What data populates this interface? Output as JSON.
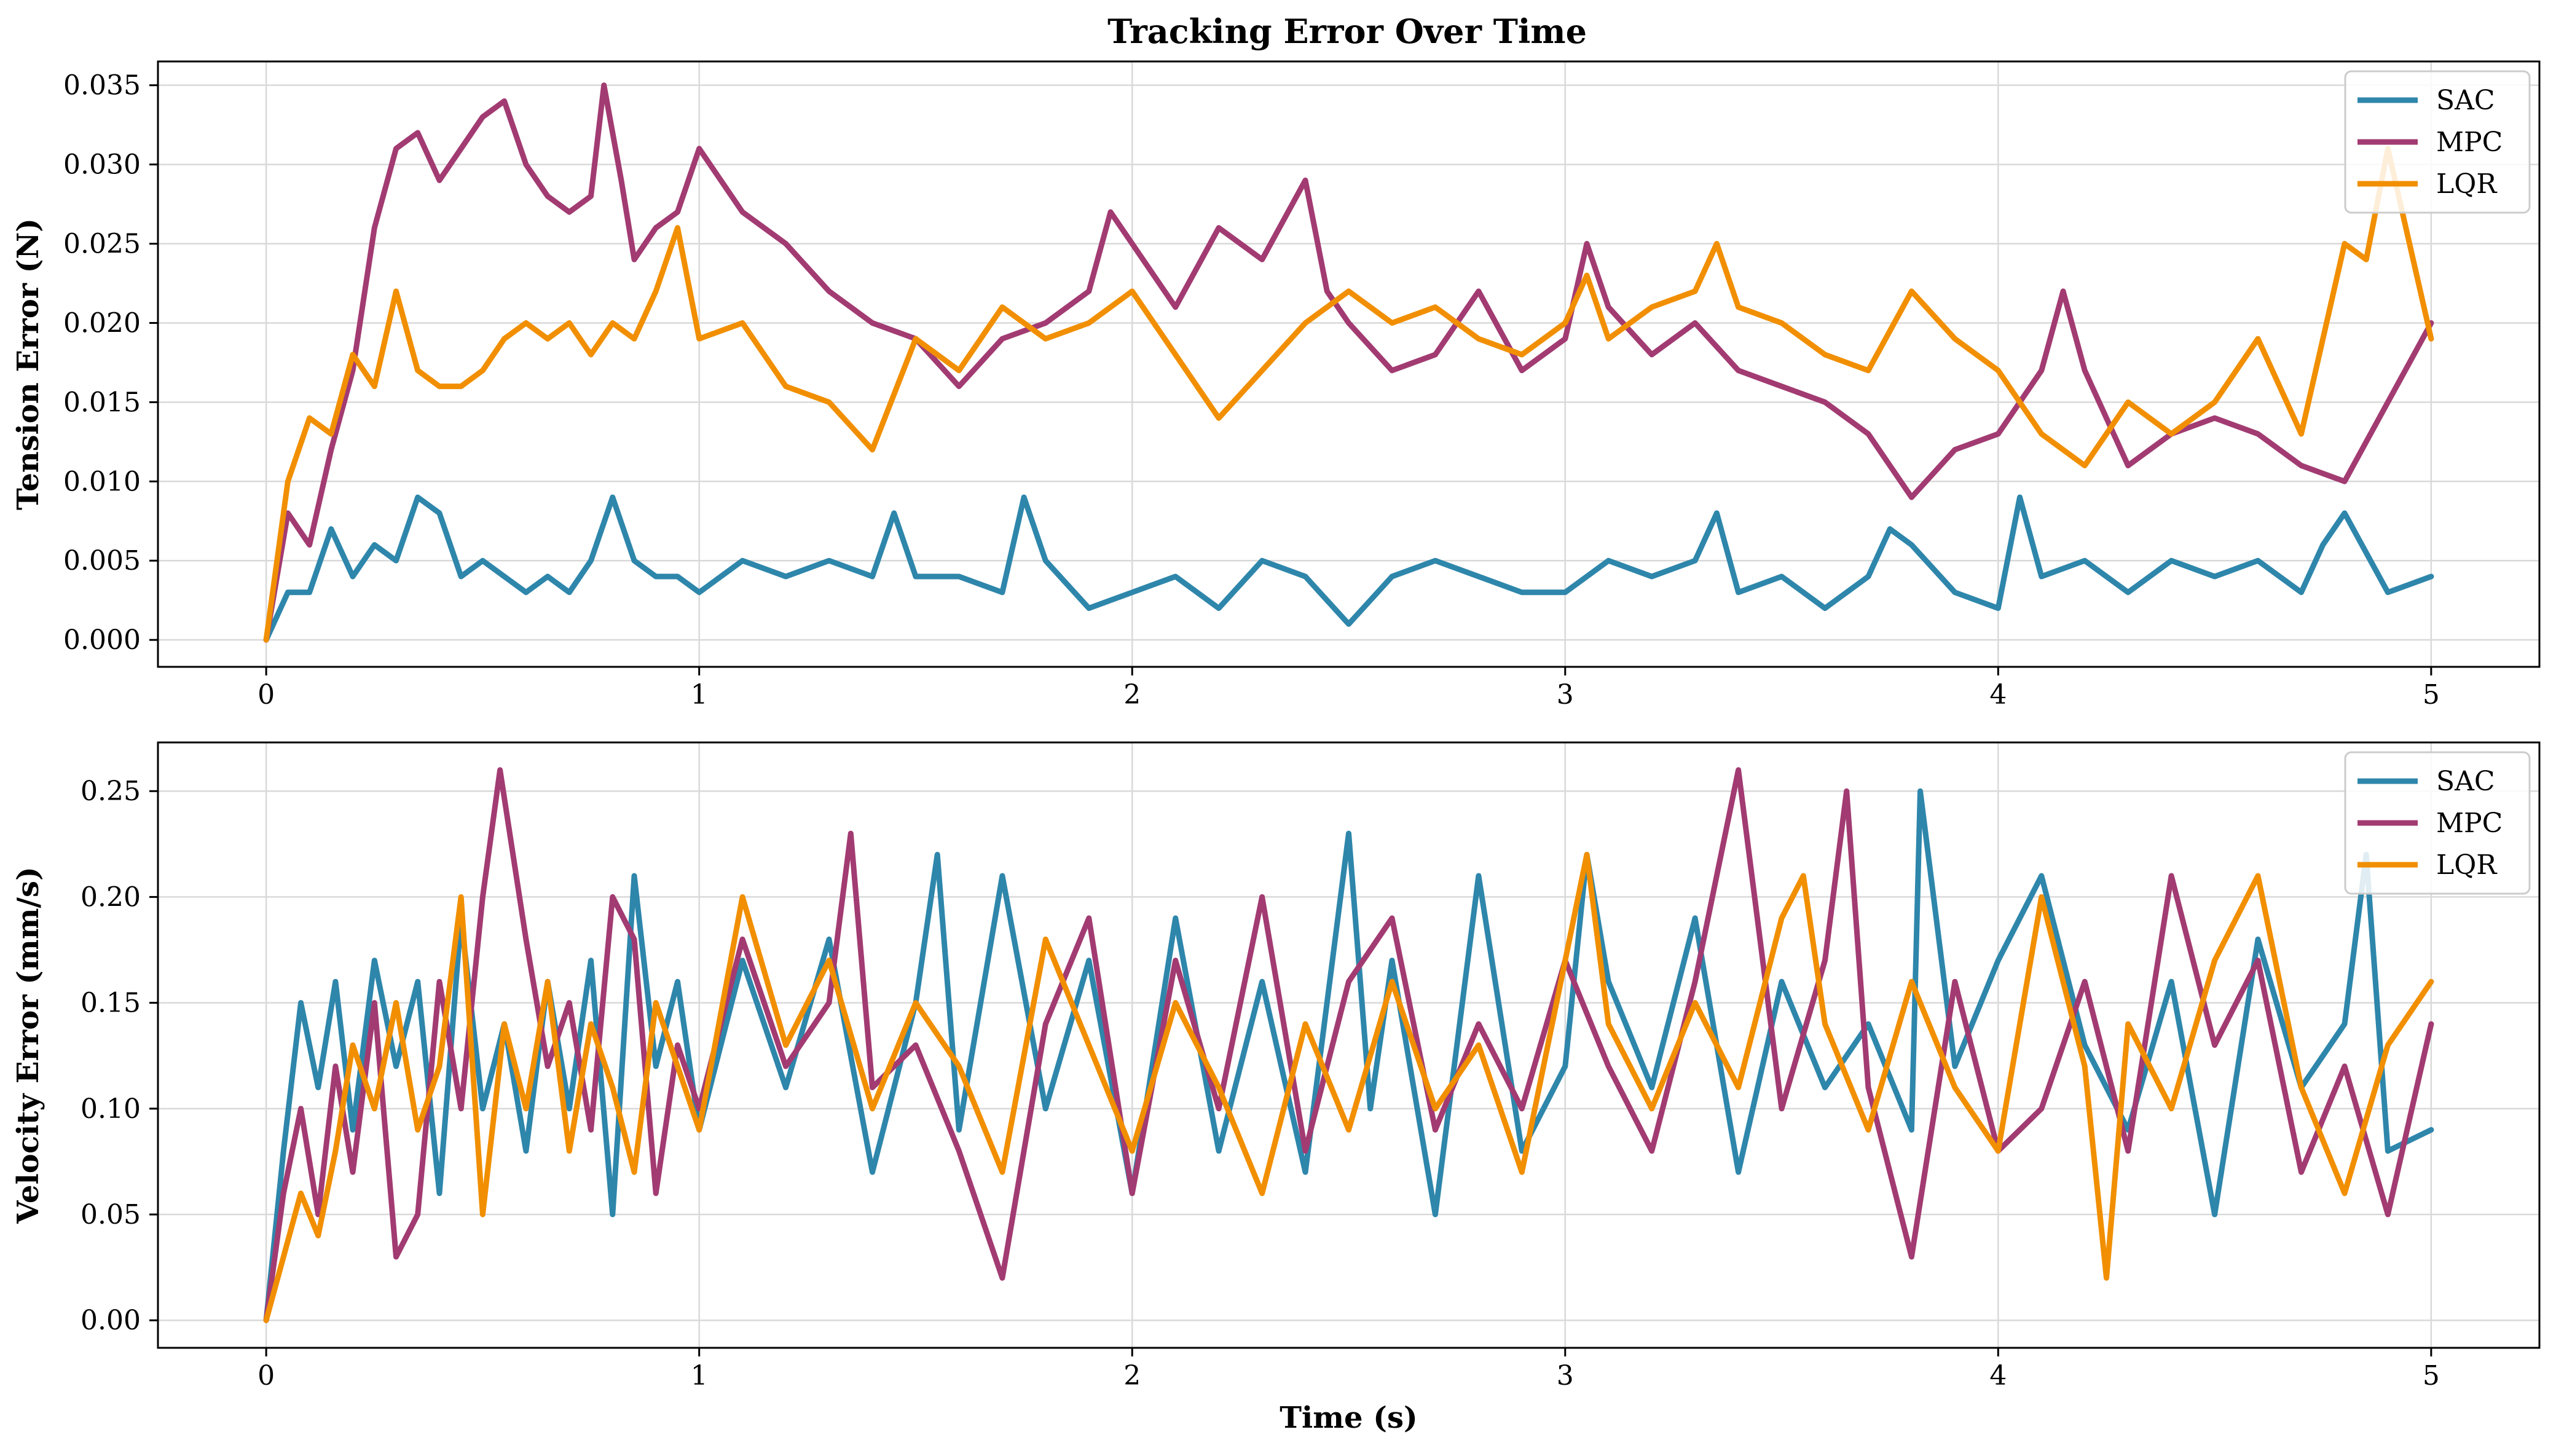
{
  "title": "Tracking Error Over Time",
  "colors": {
    "SAC": "#2e86ab",
    "MPC": "#a23b72",
    "LQR": "#f18f01"
  },
  "chart_data": [
    {
      "type": "line",
      "title": "Tracking Error Over Time",
      "xlabel": "",
      "ylabel": "Tension Error (N)",
      "xlim": [
        -0.25,
        5.25
      ],
      "ylim": [
        -0.0017,
        0.0365
      ],
      "xticks": [
        0,
        1,
        2,
        3,
        4,
        5
      ],
      "xtick_labels": [
        "0",
        "1",
        "2",
        "3",
        "4",
        "5"
      ],
      "yticks": [
        0.0,
        0.005,
        0.01,
        0.015,
        0.02,
        0.025,
        0.03,
        0.035
      ],
      "ytick_labels": [
        "0.000",
        "0.005",
        "0.010",
        "0.015",
        "0.020",
        "0.025",
        "0.030",
        "0.035"
      ],
      "grid": true,
      "legend": "top-right",
      "legend_entries": [
        "SAC",
        "MPC",
        "LQR"
      ],
      "series": [
        {
          "name": "SAC",
          "x": [
            0,
            0.05,
            0.1,
            0.15,
            0.2,
            0.25,
            0.3,
            0.35,
            0.4,
            0.45,
            0.5,
            0.55,
            0.6,
            0.65,
            0.7,
            0.75,
            0.8,
            0.85,
            0.9,
            0.95,
            1.0,
            1.1,
            1.2,
            1.3,
            1.4,
            1.45,
            1.5,
            1.6,
            1.7,
            1.75,
            1.8,
            1.9,
            2.0,
            2.1,
            2.2,
            2.3,
            2.4,
            2.5,
            2.6,
            2.7,
            2.8,
            2.9,
            3.0,
            3.1,
            3.2,
            3.3,
            3.35,
            3.4,
            3.5,
            3.6,
            3.7,
            3.75,
            3.8,
            3.9,
            4.0,
            4.05,
            4.1,
            4.2,
            4.3,
            4.4,
            4.5,
            4.6,
            4.7,
            4.75,
            4.8,
            4.9,
            5.0
          ],
          "values": [
            0.0,
            0.003,
            0.003,
            0.007,
            0.004,
            0.006,
            0.005,
            0.009,
            0.008,
            0.004,
            0.005,
            0.004,
            0.003,
            0.004,
            0.003,
            0.005,
            0.009,
            0.005,
            0.004,
            0.004,
            0.003,
            0.005,
            0.004,
            0.005,
            0.004,
            0.008,
            0.004,
            0.004,
            0.003,
            0.009,
            0.005,
            0.002,
            0.003,
            0.004,
            0.002,
            0.005,
            0.004,
            0.001,
            0.004,
            0.005,
            0.004,
            0.003,
            0.003,
            0.005,
            0.004,
            0.005,
            0.008,
            0.003,
            0.004,
            0.002,
            0.004,
            0.007,
            0.006,
            0.003,
            0.002,
            0.009,
            0.004,
            0.005,
            0.003,
            0.005,
            0.004,
            0.005,
            0.003,
            0.006,
            0.008,
            0.003,
            0.004
          ]
        },
        {
          "name": "MPC",
          "x": [
            0,
            0.05,
            0.1,
            0.15,
            0.2,
            0.25,
            0.3,
            0.35,
            0.4,
            0.45,
            0.5,
            0.55,
            0.6,
            0.65,
            0.7,
            0.75,
            0.78,
            0.82,
            0.85,
            0.9,
            0.95,
            1.0,
            1.1,
            1.2,
            1.3,
            1.4,
            1.5,
            1.6,
            1.7,
            1.8,
            1.9,
            1.95,
            2.0,
            2.1,
            2.2,
            2.3,
            2.4,
            2.45,
            2.5,
            2.6,
            2.7,
            2.8,
            2.9,
            3.0,
            3.05,
            3.1,
            3.2,
            3.3,
            3.4,
            3.5,
            3.6,
            3.7,
            3.8,
            3.9,
            4.0,
            4.1,
            4.15,
            4.2,
            4.3,
            4.4,
            4.5,
            4.6,
            4.7,
            4.8,
            4.9,
            5.0
          ],
          "values": [
            0.0,
            0.008,
            0.006,
            0.012,
            0.017,
            0.026,
            0.031,
            0.032,
            0.029,
            0.031,
            0.033,
            0.034,
            0.03,
            0.028,
            0.027,
            0.028,
            0.035,
            0.029,
            0.024,
            0.026,
            0.027,
            0.031,
            0.027,
            0.025,
            0.022,
            0.02,
            0.019,
            0.016,
            0.019,
            0.02,
            0.022,
            0.027,
            0.025,
            0.021,
            0.026,
            0.024,
            0.029,
            0.022,
            0.02,
            0.017,
            0.018,
            0.022,
            0.017,
            0.019,
            0.025,
            0.021,
            0.018,
            0.02,
            0.017,
            0.016,
            0.015,
            0.013,
            0.009,
            0.012,
            0.013,
            0.017,
            0.022,
            0.017,
            0.011,
            0.013,
            0.014,
            0.013,
            0.011,
            0.01,
            0.015,
            0.02
          ]
        },
        {
          "name": "LQR",
          "x": [
            0,
            0.05,
            0.1,
            0.15,
            0.2,
            0.25,
            0.3,
            0.35,
            0.4,
            0.45,
            0.5,
            0.55,
            0.6,
            0.65,
            0.7,
            0.75,
            0.8,
            0.85,
            0.9,
            0.95,
            1.0,
            1.1,
            1.2,
            1.3,
            1.4,
            1.5,
            1.6,
            1.7,
            1.8,
            1.9,
            2.0,
            2.1,
            2.2,
            2.3,
            2.4,
            2.5,
            2.6,
            2.7,
            2.8,
            2.9,
            3.0,
            3.05,
            3.1,
            3.2,
            3.3,
            3.35,
            3.4,
            3.5,
            3.6,
            3.7,
            3.8,
            3.9,
            4.0,
            4.1,
            4.2,
            4.3,
            4.4,
            4.5,
            4.6,
            4.7,
            4.8,
            4.85,
            4.9,
            5.0
          ],
          "values": [
            0.0,
            0.01,
            0.014,
            0.013,
            0.018,
            0.016,
            0.022,
            0.017,
            0.016,
            0.016,
            0.017,
            0.019,
            0.02,
            0.019,
            0.02,
            0.018,
            0.02,
            0.019,
            0.022,
            0.026,
            0.019,
            0.02,
            0.016,
            0.015,
            0.012,
            0.019,
            0.017,
            0.021,
            0.019,
            0.02,
            0.022,
            0.018,
            0.014,
            0.017,
            0.02,
            0.022,
            0.02,
            0.021,
            0.019,
            0.018,
            0.02,
            0.023,
            0.019,
            0.021,
            0.022,
            0.025,
            0.021,
            0.02,
            0.018,
            0.017,
            0.022,
            0.019,
            0.017,
            0.013,
            0.011,
            0.015,
            0.013,
            0.015,
            0.019,
            0.013,
            0.025,
            0.024,
            0.031,
            0.019
          ]
        }
      ]
    },
    {
      "type": "line",
      "title": "",
      "xlabel": "Time (s)",
      "ylabel": "Velocity Error (mm/s)",
      "xlim": [
        -0.25,
        5.25
      ],
      "ylim": [
        -0.013,
        0.273
      ],
      "xticks": [
        0,
        1,
        2,
        3,
        4,
        5
      ],
      "xtick_labels": [
        "0",
        "1",
        "2",
        "3",
        "4",
        "5"
      ],
      "yticks": [
        0.0,
        0.05,
        0.1,
        0.15,
        0.2,
        0.25
      ],
      "ytick_labels": [
        "0.00",
        "0.05",
        "0.10",
        "0.15",
        "0.20",
        "0.25"
      ],
      "grid": true,
      "legend": "top-right",
      "legend_entries": [
        "SAC",
        "MPC",
        "LQR"
      ],
      "series": [
        {
          "name": "SAC",
          "x": [
            0,
            0.04,
            0.08,
            0.12,
            0.16,
            0.2,
            0.25,
            0.3,
            0.35,
            0.4,
            0.45,
            0.5,
            0.55,
            0.6,
            0.65,
            0.7,
            0.75,
            0.8,
            0.85,
            0.9,
            0.95,
            1.0,
            1.1,
            1.2,
            1.3,
            1.4,
            1.5,
            1.55,
            1.6,
            1.7,
            1.8,
            1.9,
            2.0,
            2.1,
            2.2,
            2.3,
            2.4,
            2.5,
            2.55,
            2.6,
            2.7,
            2.8,
            2.9,
            3.0,
            3.05,
            3.1,
            3.2,
            3.3,
            3.4,
            3.5,
            3.6,
            3.7,
            3.8,
            3.82,
            3.9,
            4.0,
            4.1,
            4.2,
            4.3,
            4.4,
            4.5,
            4.6,
            4.7,
            4.8,
            4.85,
            4.9,
            5.0
          ],
          "values": [
            0.0,
            0.08,
            0.15,
            0.11,
            0.16,
            0.09,
            0.17,
            0.12,
            0.16,
            0.06,
            0.19,
            0.1,
            0.14,
            0.08,
            0.16,
            0.1,
            0.17,
            0.05,
            0.21,
            0.12,
            0.16,
            0.09,
            0.17,
            0.11,
            0.18,
            0.07,
            0.15,
            0.22,
            0.09,
            0.21,
            0.1,
            0.17,
            0.06,
            0.19,
            0.08,
            0.16,
            0.07,
            0.23,
            0.1,
            0.17,
            0.05,
            0.21,
            0.08,
            0.12,
            0.22,
            0.16,
            0.11,
            0.19,
            0.07,
            0.16,
            0.11,
            0.14,
            0.09,
            0.25,
            0.12,
            0.17,
            0.21,
            0.13,
            0.09,
            0.16,
            0.05,
            0.18,
            0.11,
            0.14,
            0.22,
            0.08,
            0.09
          ]
        },
        {
          "name": "MPC",
          "x": [
            0,
            0.04,
            0.08,
            0.12,
            0.16,
            0.2,
            0.25,
            0.3,
            0.35,
            0.4,
            0.45,
            0.5,
            0.54,
            0.6,
            0.65,
            0.7,
            0.75,
            0.8,
            0.85,
            0.9,
            0.95,
            1.0,
            1.1,
            1.2,
            1.3,
            1.35,
            1.4,
            1.5,
            1.6,
            1.7,
            1.8,
            1.9,
            2.0,
            2.1,
            2.2,
            2.3,
            2.4,
            2.5,
            2.6,
            2.7,
            2.8,
            2.9,
            3.0,
            3.1,
            3.2,
            3.3,
            3.4,
            3.5,
            3.6,
            3.65,
            3.7,
            3.8,
            3.9,
            4.0,
            4.1,
            4.2,
            4.3,
            4.4,
            4.5,
            4.6,
            4.7,
            4.8,
            4.9,
            5.0
          ],
          "values": [
            0.0,
            0.06,
            0.1,
            0.05,
            0.12,
            0.07,
            0.15,
            0.03,
            0.05,
            0.16,
            0.1,
            0.2,
            0.26,
            0.18,
            0.12,
            0.15,
            0.09,
            0.2,
            0.18,
            0.06,
            0.13,
            0.1,
            0.18,
            0.12,
            0.15,
            0.23,
            0.11,
            0.13,
            0.08,
            0.02,
            0.14,
            0.19,
            0.06,
            0.17,
            0.1,
            0.2,
            0.08,
            0.16,
            0.19,
            0.09,
            0.14,
            0.1,
            0.17,
            0.12,
            0.08,
            0.16,
            0.26,
            0.1,
            0.17,
            0.25,
            0.11,
            0.03,
            0.16,
            0.08,
            0.1,
            0.16,
            0.08,
            0.21,
            0.13,
            0.17,
            0.07,
            0.12,
            0.05,
            0.14
          ]
        },
        {
          "name": "LQR",
          "x": [
            0,
            0.04,
            0.08,
            0.12,
            0.16,
            0.2,
            0.25,
            0.3,
            0.35,
            0.4,
            0.45,
            0.5,
            0.55,
            0.6,
            0.65,
            0.7,
            0.75,
            0.8,
            0.85,
            0.9,
            0.95,
            1.0,
            1.1,
            1.2,
            1.3,
            1.4,
            1.5,
            1.6,
            1.7,
            1.8,
            1.9,
            2.0,
            2.1,
            2.2,
            2.3,
            2.4,
            2.5,
            2.6,
            2.7,
            2.8,
            2.9,
            3.0,
            3.05,
            3.1,
            3.2,
            3.3,
            3.4,
            3.5,
            3.55,
            3.6,
            3.7,
            3.8,
            3.9,
            4.0,
            4.1,
            4.2,
            4.25,
            4.3,
            4.4,
            4.5,
            4.6,
            4.7,
            4.8,
            4.9,
            5.0
          ],
          "values": [
            0.0,
            0.03,
            0.06,
            0.04,
            0.08,
            0.13,
            0.1,
            0.15,
            0.09,
            0.12,
            0.2,
            0.05,
            0.14,
            0.1,
            0.16,
            0.08,
            0.14,
            0.11,
            0.07,
            0.15,
            0.12,
            0.09,
            0.2,
            0.13,
            0.17,
            0.1,
            0.15,
            0.12,
            0.07,
            0.18,
            0.13,
            0.08,
            0.15,
            0.11,
            0.06,
            0.14,
            0.09,
            0.16,
            0.1,
            0.13,
            0.07,
            0.17,
            0.22,
            0.14,
            0.1,
            0.15,
            0.11,
            0.19,
            0.21,
            0.14,
            0.09,
            0.16,
            0.11,
            0.08,
            0.2,
            0.12,
            0.02,
            0.14,
            0.1,
            0.17,
            0.21,
            0.11,
            0.06,
            0.13,
            0.16
          ]
        }
      ]
    }
  ]
}
